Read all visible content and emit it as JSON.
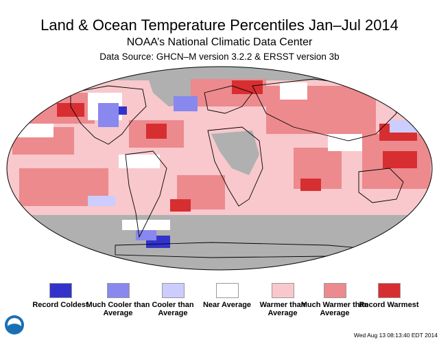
{
  "header": {
    "title": "Land & Ocean Temperature Percentiles Jan–Jul 2014",
    "subtitle": "NOAA’s National Climatic Data Center",
    "source": "Data Source: GHCN–M version 3.2.2 & ERSST version 3b"
  },
  "legend": {
    "items": [
      {
        "label": "Record Coldest",
        "color": "#3333cc"
      },
      {
        "label": "Much Cooler than Average",
        "color": "#8888ee"
      },
      {
        "label": "Cooler than Average",
        "color": "#ccccff"
      },
      {
        "label": "Near Average",
        "color": "#ffffff"
      },
      {
        "label": "Warmer than Average",
        "color": "#f8c8cc"
      },
      {
        "label": "Much Warmer than Average",
        "color": "#ec8a8e"
      },
      {
        "label": "Record Warmest",
        "color": "#d72e32"
      }
    ]
  },
  "map": {
    "colors": {
      "no_data": "#b0b0b0",
      "border": "#000000"
    }
  },
  "logo": {
    "icon": "noaa-logo-icon",
    "colors": {
      "outer": "#1a6fb4",
      "inner": "#ffffff"
    }
  },
  "footer": {
    "timestamp": "Wed Aug 13 08:13:40 EDT 2014"
  }
}
